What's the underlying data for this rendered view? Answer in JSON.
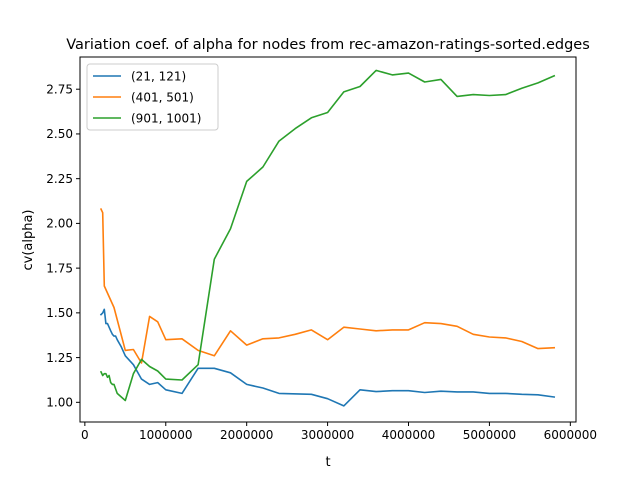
{
  "chart_data": {
    "type": "line",
    "title": "Variation coef. of alpha for nodes from rec-amazon-ratings-sorted.edges",
    "xlabel": "t",
    "ylabel": "cv(alpha)",
    "xlim": [
      -60000,
      6070000
    ],
    "ylim": [
      0.89,
      2.93
    ],
    "x_ticks": [
      0,
      1000000,
      2000000,
      3000000,
      4000000,
      5000000,
      6000000
    ],
    "y_ticks": [
      1.0,
      1.25,
      1.5,
      1.75,
      2.0,
      2.25,
      2.5,
      2.75
    ],
    "x_tick_labels": [
      "0",
      "1000000",
      "2000000",
      "3000000",
      "4000000",
      "5000000",
      "6000000"
    ],
    "y_tick_labels": [
      "1.00",
      "1.25",
      "1.50",
      "1.75",
      "2.00",
      "2.25",
      "2.50",
      "2.75"
    ],
    "grid": false,
    "legend_position": "top-left",
    "series": [
      {
        "name": "(21, 121)",
        "color": "#1f77b4",
        "x": [
          200000,
          220000,
          240000,
          260000,
          280000,
          300000,
          320000,
          340000,
          360000,
          380000,
          400000,
          450000,
          500000,
          600000,
          700000,
          800000,
          900000,
          1000000,
          1200000,
          1400000,
          1600000,
          1800000,
          2000000,
          2200000,
          2400000,
          2800000,
          3000000,
          3200000,
          3400000,
          3600000,
          3800000,
          4000000,
          4200000,
          4400000,
          4600000,
          4800000,
          5000000,
          5200000,
          5400000,
          5600000,
          5800000
        ],
        "y": [
          1.49,
          1.5,
          1.52,
          1.44,
          1.44,
          1.42,
          1.4,
          1.38,
          1.37,
          1.37,
          1.35,
          1.31,
          1.26,
          1.21,
          1.13,
          1.1,
          1.11,
          1.07,
          1.05,
          1.19,
          1.19,
          1.165,
          1.1,
          1.08,
          1.05,
          1.045,
          1.02,
          0.98,
          1.07,
          1.06,
          1.065,
          1.065,
          1.055,
          1.062,
          1.058,
          1.058,
          1.05,
          1.05,
          1.045,
          1.042,
          1.03
        ]
      },
      {
        "name": "(401, 501)",
        "color": "#ff7f0e",
        "x": [
          200000,
          220000,
          240000,
          360000,
          500000,
          600000,
          700000,
          800000,
          900000,
          1000000,
          1200000,
          1400000,
          1600000,
          1800000,
          2000000,
          2200000,
          2400000,
          2600000,
          2800000,
          3000000,
          3200000,
          3400000,
          3600000,
          3800000,
          4000000,
          4200000,
          4400000,
          4600000,
          4800000,
          5000000,
          5200000,
          5400000,
          5600000,
          5800000
        ],
        "y": [
          2.08,
          2.06,
          1.65,
          1.53,
          1.29,
          1.295,
          1.22,
          1.48,
          1.45,
          1.35,
          1.355,
          1.29,
          1.26,
          1.4,
          1.32,
          1.355,
          1.36,
          1.38,
          1.405,
          1.35,
          1.42,
          1.41,
          1.4,
          1.405,
          1.405,
          1.445,
          1.44,
          1.425,
          1.38,
          1.365,
          1.36,
          1.34,
          1.3,
          1.305
        ]
      },
      {
        "name": "(901, 1001)",
        "color": "#2ca02c",
        "x": [
          200000,
          220000,
          240000,
          260000,
          280000,
          300000,
          320000,
          340000,
          360000,
          400000,
          450000,
          500000,
          600000,
          700000,
          800000,
          900000,
          1000000,
          1200000,
          1400000,
          1600000,
          1800000,
          2000000,
          2200000,
          2400000,
          2600000,
          2800000,
          3000000,
          3200000,
          3400000,
          3600000,
          3800000,
          4000000,
          4200000,
          4400000,
          4600000,
          4800000,
          5000000,
          5200000,
          5400000,
          5600000,
          5800000
        ],
        "y": [
          1.17,
          1.15,
          1.16,
          1.16,
          1.14,
          1.15,
          1.11,
          1.1,
          1.1,
          1.05,
          1.03,
          1.01,
          1.16,
          1.24,
          1.2,
          1.175,
          1.13,
          1.125,
          1.21,
          1.8,
          1.97,
          2.235,
          2.315,
          2.46,
          2.53,
          2.59,
          2.62,
          2.735,
          2.765,
          2.855,
          2.83,
          2.84,
          2.79,
          2.805,
          2.71,
          2.72,
          2.715,
          2.72,
          2.755,
          2.785,
          2.825
        ]
      }
    ]
  }
}
